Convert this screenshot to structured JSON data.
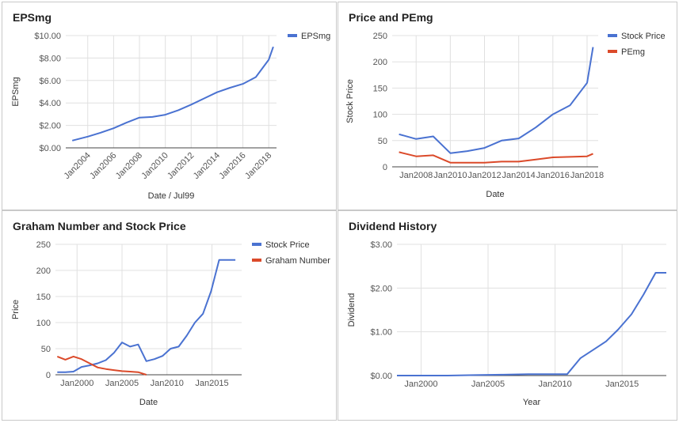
{
  "colors": {
    "blue": "#4a72d1",
    "red": "#db4a2a",
    "grid": "#e0e0e0",
    "axis": "#444444",
    "text": "#555555"
  },
  "chart_data": [
    {
      "type": "line",
      "title": "EPSmg",
      "xlabel": "Date / Jul99",
      "ylabel": "EPSmg",
      "xlim": [
        2002.3,
        2018.6
      ],
      "ylim": [
        0,
        10
      ],
      "xticks": [
        2004,
        2006,
        2008,
        2010,
        2012,
        2014,
        2016,
        2018
      ],
      "xtick_labels": [
        "Jan2004",
        "Jan2006",
        "Jan2008",
        "Jan2010",
        "Jan2012",
        "Jan2014",
        "Jan2016",
        "Jan2018"
      ],
      "yticks": [
        0,
        2,
        4,
        6,
        8,
        10
      ],
      "ytick_labels": [
        "$0.00",
        "$2.00",
        "$4.00",
        "$6.00",
        "$8.00",
        "$10.00"
      ],
      "legend": "top-right",
      "series": [
        {
          "name": "EPSmg",
          "color": "#4a72d1",
          "x": [
            2002.8,
            2004.0,
            2005.0,
            2006.0,
            2007.0,
            2008.0,
            2009.0,
            2010.0,
            2011.0,
            2012.0,
            2013.0,
            2014.0,
            2015.0,
            2016.0,
            2017.0,
            2018.0,
            2018.35
          ],
          "y": [
            0.65,
            1.0,
            1.35,
            1.75,
            2.25,
            2.7,
            2.75,
            2.95,
            3.35,
            3.85,
            4.4,
            4.95,
            5.35,
            5.7,
            6.3,
            7.85,
            9.0
          ]
        }
      ]
    },
    {
      "type": "line",
      "title": "Price and PEmg",
      "xlabel": "Date",
      "ylabel": "Stock Price",
      "xlim": [
        2006.6,
        2018.65
      ],
      "ylim": [
        0,
        250
      ],
      "xticks": [
        2008,
        2010,
        2012,
        2014,
        2016,
        2018
      ],
      "xtick_labels": [
        "Jan2008",
        "Jan2010",
        "Jan2012",
        "Jan2014",
        "Jan2016",
        "Jan2018"
      ],
      "yticks": [
        0,
        50,
        100,
        150,
        200,
        250
      ],
      "ytick_labels": [
        "0",
        "50",
        "100",
        "150",
        "200",
        "250"
      ],
      "legend": "top-right",
      "series": [
        {
          "name": "Stock Price",
          "color": "#4a72d1",
          "x": [
            2007.0,
            2008.0,
            2009.0,
            2010.0,
            2011.0,
            2012.0,
            2013.0,
            2014.0,
            2015.0,
            2016.0,
            2017.0,
            2018.0,
            2018.35
          ],
          "y": [
            62,
            53,
            58,
            26,
            30,
            36,
            50,
            54,
            75,
            100,
            117,
            160,
            228
          ]
        },
        {
          "name": "PEmg",
          "color": "#db4a2a",
          "x": [
            2007.0,
            2008.0,
            2009.0,
            2010.0,
            2011.0,
            2012.0,
            2013.0,
            2014.0,
            2015.0,
            2016.0,
            2017.0,
            2018.0,
            2018.35
          ],
          "y": [
            28,
            20,
            22,
            8,
            8,
            8,
            10,
            10,
            14,
            18,
            19,
            20,
            25
          ]
        }
      ]
    },
    {
      "type": "line",
      "title": "Graham Number and Stock Price",
      "xlabel": "Date",
      "ylabel": "Price",
      "xlim": [
        1997.6,
        2018.3
      ],
      "ylim": [
        0,
        250
      ],
      "xticks": [
        2000,
        2005,
        2010,
        2015
      ],
      "xtick_labels": [
        "Jan2000",
        "Jan2005",
        "Jan2010",
        "Jan2015"
      ],
      "yticks": [
        0,
        50,
        100,
        150,
        200,
        250
      ],
      "ytick_labels": [
        "0",
        "50",
        "100",
        "150",
        "200",
        "250"
      ],
      "legend": "top-right",
      "series": [
        {
          "name": "Stock Price",
          "color": "#4a72d1",
          "x": [
            1997.8,
            1998.7,
            1999.6,
            2000.5,
            2001.4,
            2002.3,
            2003.2,
            2004.1,
            2005.0,
            2005.9,
            2006.8,
            2007.7,
            2008.6,
            2009.5,
            2010.4,
            2011.3,
            2012.2,
            2013.1,
            2014.0,
            2014.9,
            2015.8,
            2016.7,
            2017.6
          ],
          "y": [
            5,
            5,
            6,
            15,
            18,
            22,
            28,
            42,
            62,
            54,
            58,
            26,
            30,
            36,
            50,
            54,
            75,
            100,
            117,
            160,
            220,
            220,
            220
          ]
        },
        {
          "name": "Graham Number",
          "color": "#db4a2a",
          "x": [
            1997.8,
            1998.7,
            1999.6,
            2000.5,
            2001.4,
            2002.3,
            2003.2,
            2004.1,
            2005.0,
            2005.9,
            2006.8,
            2007.7
          ],
          "y": [
            35,
            29,
            35,
            30,
            22,
            14,
            11,
            9,
            7,
            6,
            5,
            0
          ]
        }
      ]
    },
    {
      "type": "line",
      "title": "Dividend History",
      "xlabel": "Year",
      "ylabel": "Dividend",
      "xlim": [
        1998.2,
        2018.3
      ],
      "ylim": [
        0,
        3
      ],
      "xticks": [
        2000,
        2005,
        2010,
        2015
      ],
      "xtick_labels": [
        "Jan2000",
        "Jan2005",
        "Jan2010",
        "Jan2015"
      ],
      "yticks": [
        0,
        1,
        2,
        3
      ],
      "ytick_labels": [
        "$0.00",
        "$1.00",
        "$2.00",
        "$3.00"
      ],
      "legend": "none",
      "series": [
        {
          "name": "",
          "color": "#4a72d1",
          "x": [
            1998.2,
            2000.0,
            2002.0,
            2004.0,
            2006.0,
            2008.0,
            2010.0,
            2010.9,
            2011.9,
            2012.9,
            2013.8,
            2014.7,
            2015.7,
            2016.6,
            2017.5,
            2018.3
          ],
          "y": [
            0,
            0,
            0,
            0.01,
            0.02,
            0.03,
            0.03,
            0.03,
            0.4,
            0.6,
            0.78,
            1.05,
            1.4,
            1.85,
            2.35,
            2.35
          ]
        }
      ]
    }
  ]
}
